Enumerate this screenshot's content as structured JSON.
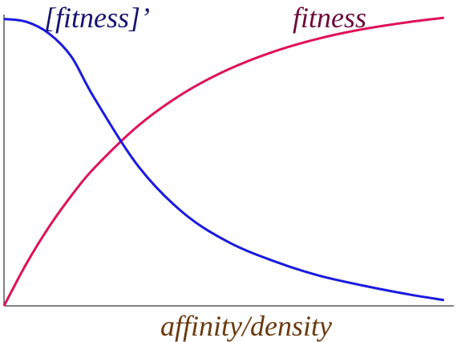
{
  "chart_data": {
    "type": "line",
    "x_label": "affinity/density",
    "x": [
      0,
      0.05,
      0.1,
      0.15,
      0.2,
      0.3,
      0.4,
      0.5,
      0.6,
      0.7,
      0.8,
      0.9,
      0.98
    ],
    "xlim": [
      0,
      1
    ],
    "ylim": [
      0,
      1
    ],
    "series": [
      {
        "name": "fitness",
        "color": "#e0105a",
        "label_color": "#6b0a3a",
        "values": [
          0,
          0.146,
          0.272,
          0.38,
          0.474,
          0.623,
          0.734,
          0.816,
          0.877,
          0.922,
          0.955,
          0.979,
          0.994
        ]
      },
      {
        "name": "[fitness]’",
        "color": "#1a1adf",
        "label_color": "#14146e",
        "values": [
          0.99,
          0.98,
          0.94,
          0.86,
          0.72,
          0.48,
          0.32,
          0.22,
          0.155,
          0.105,
          0.07,
          0.04,
          0.02
        ]
      }
    ]
  }
}
